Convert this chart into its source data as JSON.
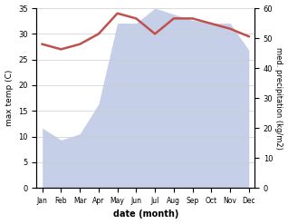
{
  "months": [
    "Jan",
    "Feb",
    "Mar",
    "Apr",
    "May",
    "Jun",
    "Jul",
    "Aug",
    "Sep",
    "Oct",
    "Nov",
    "Dec"
  ],
  "x": [
    0,
    1,
    2,
    3,
    4,
    5,
    6,
    7,
    8,
    9,
    10,
    11
  ],
  "temp_max": [
    28.0,
    27.0,
    28.0,
    30.0,
    34.0,
    33.0,
    30.0,
    33.0,
    33.0,
    32.0,
    31.0,
    29.5
  ],
  "precip": [
    20,
    16,
    18,
    28,
    55,
    55,
    60,
    58,
    56,
    55,
    55,
    46
  ],
  "temp_color": "#c0504d",
  "precip_color": "#c5cfe8",
  "ylabel_left": "max temp (C)",
  "ylabel_right": "med. precipitation (kg/m2)",
  "xlabel": "date (month)",
  "ylim_left": [
    0,
    35
  ],
  "ylim_right": [
    0,
    60
  ],
  "yticks_left": [
    0,
    5,
    10,
    15,
    20,
    25,
    30,
    35
  ],
  "yticks_right": [
    0,
    10,
    20,
    30,
    40,
    50,
    60
  ],
  "grid_color": "#cccccc",
  "bg_color": "#ffffff"
}
